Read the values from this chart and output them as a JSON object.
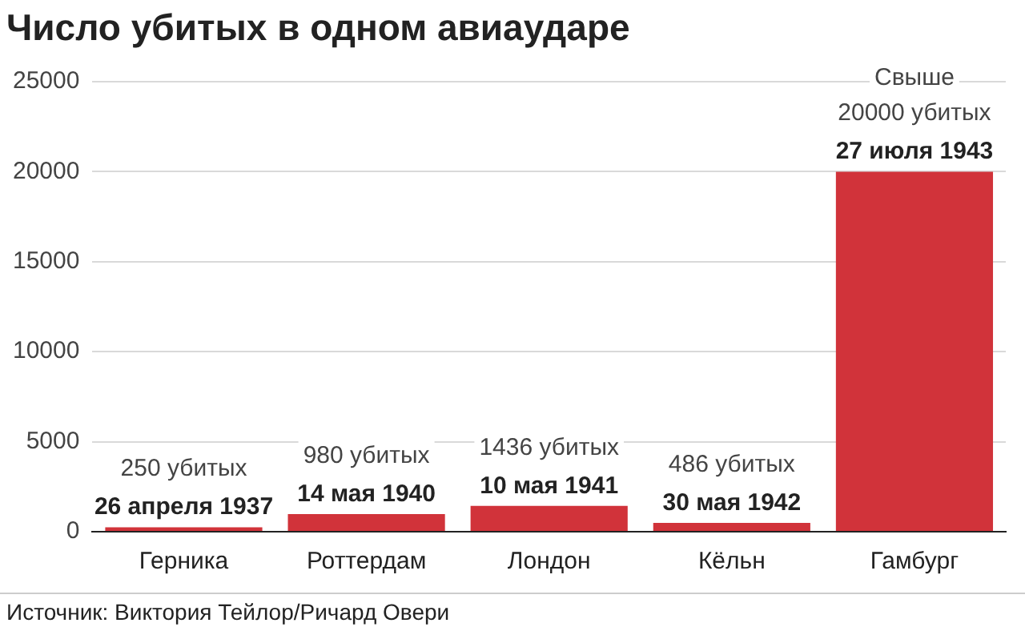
{
  "chart_data": {
    "type": "bar",
    "title": "Число убитых в одном авиаударе",
    "categories": [
      "Герника",
      "Роттердам",
      "Лондон",
      "Кёльн",
      "Гамбург"
    ],
    "values": [
      250,
      980,
      1436,
      486,
      20000
    ],
    "color": "#d1333a",
    "value_labels": [
      "250 убитых",
      "980 убитых",
      "1436 убитых",
      "486 убитых",
      "Свыше 20000 убитых"
    ],
    "annotations": [
      {
        "text": "26 апреля 1937",
        "x": "Герника",
        "y": 250
      },
      {
        "text": "14 мая 1940",
        "x": "Роттердам",
        "y": 980
      },
      {
        "text": "10 мая 1941",
        "x": "Лондон",
        "y": 1436
      },
      {
        "text": "30 мая 1942",
        "x": "Кёльн",
        "y": 486
      },
      {
        "text": "27 июля 1943",
        "x": "Гамбург",
        "y": 20000
      },
      "Источник: Виктория Тейлор/Ричард Овери"
    ],
    "ylim": [
      0,
      25000
    ],
    "yticks": [
      0,
      5000,
      10000,
      15000,
      20000,
      25000
    ],
    "grid": "y"
  }
}
